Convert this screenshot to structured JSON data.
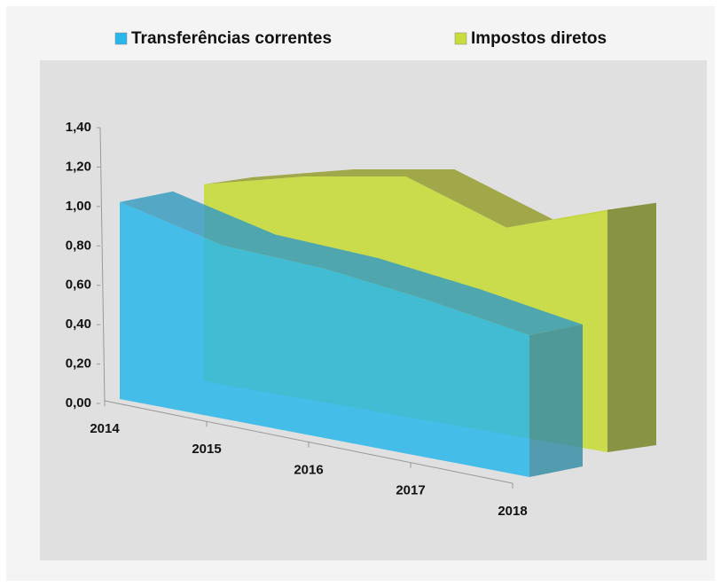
{
  "chart_data": {
    "type": "area",
    "categories": [
      "2014",
      "2015",
      "2016",
      "2017",
      "2018"
    ],
    "series": [
      {
        "name": "Transferências correntes",
        "color": "#29b6ea",
        "values": [
          1.0,
          0.88,
          0.86,
          0.8,
          0.72
        ]
      },
      {
        "name": "Impostos diretos",
        "color": "#c8dc3c",
        "values": [
          1.0,
          1.13,
          1.22,
          1.05,
          1.23
        ]
      }
    ],
    "ylim": [
      0,
      1.4
    ],
    "yticks": [
      {
        "value": 0,
        "label": "0,00"
      },
      {
        "value": 0.2,
        "label": "0,20"
      },
      {
        "value": 0.4,
        "label": "0,40"
      },
      {
        "value": 0.6,
        "label": "0,60"
      },
      {
        "value": 0.8,
        "label": "0,80"
      },
      {
        "value": 1.0,
        "label": "1,00"
      },
      {
        "value": 1.2,
        "label": "1,20"
      },
      {
        "value": 1.4,
        "label": "1,40"
      }
    ],
    "legend": "top"
  }
}
